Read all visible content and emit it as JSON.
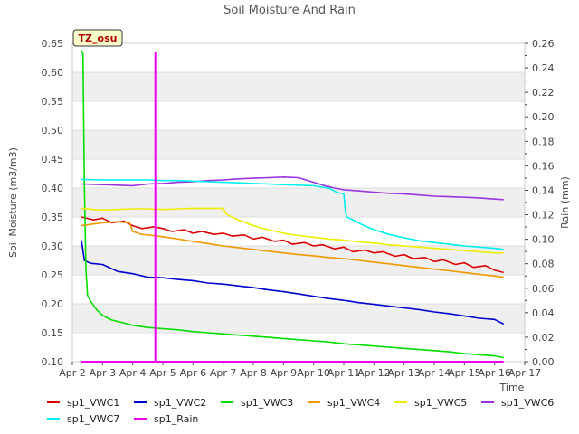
{
  "chart_data": {
    "type": "line",
    "title": "Soil Moisture And Rain",
    "badge": "TZ_osu",
    "ylabel": "Soil Moisture (m3/m3)",
    "y2label": "Rain (mm)",
    "xlabel": "Time",
    "xlim": [
      2.0,
      17.0
    ],
    "ylim": [
      0.1,
      0.65
    ],
    "y2lim": [
      0.0,
      0.26
    ],
    "x_ticks": [
      2,
      3,
      4,
      5,
      6,
      7,
      8,
      9,
      10,
      11,
      12,
      13,
      14,
      15,
      16,
      17
    ],
    "x_tick_labels": [
      "Apr 2",
      "Apr 3",
      "Apr 4",
      "Apr 5",
      "Apr 6",
      "Apr 7",
      "Apr 8",
      "Apr 9",
      "Apr 10",
      "Apr 11",
      "Apr 12",
      "Apr 13",
      "Apr 14",
      "Apr 15",
      "Apr 16",
      "Apr 17"
    ],
    "y_ticks": [
      0.1,
      0.15,
      0.2,
      0.25,
      0.3,
      0.35,
      0.4,
      0.45,
      0.5,
      0.55,
      0.6,
      0.65
    ],
    "y_tick_labels": [
      "0.10",
      "0.15",
      "0.20",
      "0.25",
      "0.30",
      "0.35",
      "0.40",
      "0.45",
      "0.50",
      "0.55",
      "0.60",
      "0.65"
    ],
    "y2_ticks": [
      0.0,
      0.02,
      0.04,
      0.06,
      0.08,
      0.1,
      0.12,
      0.14,
      0.16,
      0.18,
      0.2,
      0.22,
      0.24,
      0.26
    ],
    "y2_tick_labels": [
      "0.00",
      "0.02",
      "0.04",
      "0.06",
      "0.08",
      "0.10",
      "0.12",
      "0.14",
      "0.16",
      "0.18",
      "0.20",
      "0.22",
      "0.24",
      "0.26"
    ],
    "grid": "horizontal-bands",
    "legend_position": "bottom",
    "series": [
      {
        "name": "sp1_VWC1",
        "color": "#dd0000",
        "axis": "left",
        "x": [
          2.3,
          2.7,
          3.0,
          3.3,
          3.7,
          4.0,
          4.3,
          4.7,
          5.0,
          5.3,
          5.7,
          6.0,
          6.3,
          6.7,
          7.0,
          7.3,
          7.7,
          8.0,
          8.3,
          8.7,
          9.0,
          9.3,
          9.7,
          10.0,
          10.3,
          10.7,
          11.0,
          11.3,
          11.7,
          12.0,
          12.3,
          12.7,
          13.0,
          13.3,
          13.7,
          14.0,
          14.3,
          14.7,
          15.0,
          15.3,
          15.7,
          16.0,
          16.3
        ],
        "y": [
          0.35,
          0.345,
          0.348,
          0.34,
          0.343,
          0.335,
          0.33,
          0.333,
          0.33,
          0.325,
          0.328,
          0.322,
          0.325,
          0.32,
          0.322,
          0.317,
          0.319,
          0.312,
          0.315,
          0.308,
          0.31,
          0.303,
          0.306,
          0.3,
          0.302,
          0.295,
          0.298,
          0.29,
          0.293,
          0.288,
          0.29,
          0.282,
          0.285,
          0.278,
          0.28,
          0.273,
          0.276,
          0.268,
          0.271,
          0.263,
          0.266,
          0.258,
          0.254
        ]
      },
      {
        "name": "sp1_VWC2",
        "color": "#0000cc",
        "axis": "left",
        "x": [
          2.3,
          2.4,
          2.6,
          3.0,
          3.5,
          4.0,
          4.5,
          5.0,
          5.5,
          6.0,
          6.5,
          7.0,
          7.5,
          8.0,
          8.5,
          9.0,
          9.5,
          10.0,
          10.5,
          11.0,
          11.5,
          12.0,
          12.5,
          13.0,
          13.5,
          14.0,
          14.5,
          15.0,
          15.5,
          16.0,
          16.3
        ],
        "y": [
          0.31,
          0.275,
          0.27,
          0.268,
          0.256,
          0.252,
          0.246,
          0.245,
          0.242,
          0.24,
          0.236,
          0.234,
          0.231,
          0.228,
          0.224,
          0.221,
          0.217,
          0.213,
          0.209,
          0.206,
          0.202,
          0.199,
          0.196,
          0.193,
          0.19,
          0.186,
          0.183,
          0.179,
          0.175,
          0.173,
          0.165
        ]
      },
      {
        "name": "sp1_VWC3",
        "color": "#00dd00",
        "axis": "left",
        "x": [
          2.3,
          2.35,
          2.4,
          2.45,
          2.5,
          2.6,
          2.8,
          3.0,
          3.3,
          3.7,
          4.0,
          4.5,
          5.0,
          5.5,
          6.0,
          6.5,
          7.0,
          7.5,
          8.0,
          8.5,
          9.0,
          9.5,
          10.0,
          10.5,
          11.0,
          11.5,
          12.0,
          12.5,
          13.0,
          13.5,
          14.0,
          14.5,
          15.0,
          15.5,
          16.0,
          16.3
        ],
        "y": [
          0.638,
          0.632,
          0.4,
          0.26,
          0.215,
          0.205,
          0.19,
          0.18,
          0.172,
          0.167,
          0.163,
          0.159,
          0.157,
          0.155,
          0.152,
          0.15,
          0.148,
          0.146,
          0.144,
          0.142,
          0.14,
          0.138,
          0.136,
          0.134,
          0.131,
          0.129,
          0.127,
          0.125,
          0.123,
          0.121,
          0.119,
          0.117,
          0.114,
          0.112,
          0.11,
          0.107
        ]
      },
      {
        "name": "sp1_VWC4",
        "color": "#ee9900",
        "axis": "left",
        "x": [
          2.3,
          2.7,
          3.0,
          3.5,
          3.9,
          4.0,
          4.3,
          4.7,
          5.0,
          5.5,
          6.0,
          6.5,
          7.0,
          7.5,
          8.0,
          8.5,
          9.0,
          9.5,
          10.0,
          10.5,
          11.0,
          11.5,
          12.0,
          12.5,
          13.0,
          13.5,
          14.0,
          14.5,
          15.0,
          15.5,
          16.0,
          16.3
        ],
        "y": [
          0.335,
          0.338,
          0.34,
          0.342,
          0.34,
          0.325,
          0.32,
          0.318,
          0.316,
          0.312,
          0.308,
          0.304,
          0.3,
          0.297,
          0.294,
          0.291,
          0.288,
          0.285,
          0.283,
          0.28,
          0.278,
          0.275,
          0.272,
          0.269,
          0.266,
          0.263,
          0.26,
          0.257,
          0.254,
          0.251,
          0.248,
          0.246
        ]
      },
      {
        "name": "sp1_VWC5",
        "color": "#eeee00",
        "axis": "left",
        "x": [
          2.3,
          2.7,
          3.0,
          3.5,
          4.0,
          4.5,
          5.0,
          5.5,
          6.0,
          6.5,
          7.0,
          7.1,
          7.5,
          8.0,
          8.5,
          9.0,
          9.5,
          10.0,
          10.5,
          11.0,
          11.5,
          12.0,
          12.5,
          13.0,
          13.5,
          14.0,
          14.5,
          15.0,
          15.5,
          16.0,
          16.3
        ],
        "y": [
          0.365,
          0.363,
          0.362,
          0.363,
          0.364,
          0.364,
          0.363,
          0.364,
          0.365,
          0.365,
          0.365,
          0.355,
          0.345,
          0.335,
          0.328,
          0.322,
          0.318,
          0.315,
          0.312,
          0.31,
          0.307,
          0.305,
          0.302,
          0.3,
          0.298,
          0.296,
          0.294,
          0.292,
          0.29,
          0.288,
          0.288
        ]
      },
      {
        "name": "sp1_VWC6",
        "color": "#9933dd",
        "axis": "left",
        "x": [
          2.3,
          3.0,
          3.5,
          4.0,
          4.5,
          5.0,
          5.5,
          6.0,
          6.5,
          7.0,
          7.5,
          8.0,
          8.5,
          9.0,
          9.5,
          10.0,
          10.3,
          10.7,
          11.0,
          11.5,
          12.0,
          12.5,
          13.0,
          13.5,
          14.0,
          14.5,
          15.0,
          15.5,
          16.0,
          16.3
        ],
        "y": [
          0.407,
          0.406,
          0.405,
          0.404,
          0.407,
          0.408,
          0.41,
          0.411,
          0.413,
          0.414,
          0.416,
          0.417,
          0.418,
          0.419,
          0.418,
          0.41,
          0.405,
          0.4,
          0.397,
          0.395,
          0.393,
          0.391,
          0.39,
          0.388,
          0.386,
          0.385,
          0.384,
          0.383,
          0.381,
          0.38
        ]
      },
      {
        "name": "sp1_VWC7",
        "color": "#00eeee",
        "axis": "left",
        "x": [
          2.3,
          3.0,
          3.5,
          4.0,
          4.5,
          5.0,
          5.5,
          6.0,
          6.5,
          7.0,
          7.5,
          8.0,
          8.5,
          9.0,
          9.5,
          10.0,
          10.5,
          10.8,
          11.0,
          11.05,
          11.1,
          11.3,
          11.6,
          12.0,
          12.5,
          13.0,
          13.5,
          14.0,
          14.5,
          15.0,
          15.5,
          16.0,
          16.3
        ],
        "y": [
          0.415,
          0.414,
          0.414,
          0.414,
          0.414,
          0.413,
          0.413,
          0.412,
          0.411,
          0.41,
          0.409,
          0.408,
          0.407,
          0.406,
          0.405,
          0.404,
          0.4,
          0.392,
          0.39,
          0.36,
          0.35,
          0.345,
          0.337,
          0.328,
          0.32,
          0.314,
          0.309,
          0.306,
          0.303,
          0.3,
          0.298,
          0.296,
          0.294
        ]
      },
      {
        "name": "sp1_Rain",
        "color": "#ee00ee",
        "axis": "right",
        "x": [
          2.3,
          4.75,
          4.75,
          4.75,
          4.75,
          16.3
        ],
        "y": [
          0.0,
          0.0,
          0.252,
          0.252,
          0.0,
          0.0
        ]
      }
    ]
  }
}
